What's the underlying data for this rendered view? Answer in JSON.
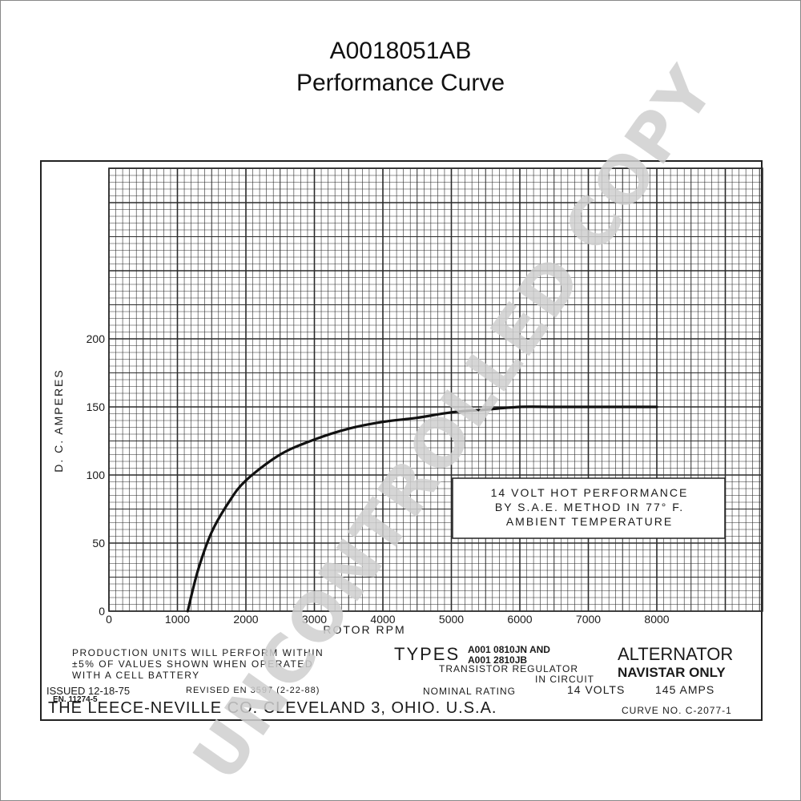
{
  "header": {
    "title": "A0018051AB",
    "subtitle": "Performance Curve"
  },
  "chart_data": {
    "type": "line",
    "xlabel": "ROTOR RPM",
    "ylabel": "D. C. AMPERES",
    "xlim": [
      0,
      8000
    ],
    "ylim": [
      0,
      200
    ],
    "x_ticks": [
      "0",
      "1000",
      "2000",
      "3000",
      "4000",
      "5000",
      "6000",
      "7000",
      "8000"
    ],
    "y_ticks": [
      "0",
      "50",
      "100",
      "150",
      "200"
    ],
    "grid": true,
    "series": [
      {
        "x": [
          1150,
          1300,
          1500,
          1750,
          2000,
          2500,
          3000,
          3500,
          4000,
          4500,
          5000,
          5500,
          6000,
          6500,
          7000,
          7500,
          8000
        ],
        "values": [
          0,
          30,
          58,
          80,
          96,
          115,
          126,
          134,
          139,
          142,
          146,
          148,
          150,
          150,
          150,
          150,
          150
        ]
      }
    ],
    "annotation": {
      "line1": "14 VOLT HOT PERFORMANCE",
      "line2": "BY S.A.E. METHOD IN 77° F.",
      "line3": "AMBIENT TEMPERATURE"
    }
  },
  "footer": {
    "production_line1": "PRODUCTION UNITS WILL PERFORM WITHIN",
    "production_line2": "±5% OF VALUES SHOWN WHEN OPERATED",
    "production_line3": "WITH A CELL BATTERY",
    "types_label": "TYPES",
    "type_1": "A001 0810JN AND",
    "type_2": "A001 2810JB",
    "regulator_line1": "TRANSISTOR REGULATOR",
    "regulator_line2": "IN CIRCUIT",
    "product_line1": "ALTERNATOR",
    "product_line2": "NAVISTAR ONLY",
    "issued": "ISSUED 12-18-75",
    "en_number": "EN. 11274-5",
    "revised": "REVISED EN 3597 (2-22-88)",
    "nominal_rating": "NOMINAL RATING",
    "volts": "14 VOLTS",
    "amps": "145 AMPS",
    "company": "THE LEECE-NEVILLE CO. CLEVELAND 3, OHIO. U.S.A.",
    "curve_no": "CURVE NO. C-2077-1"
  },
  "watermark": "UNCONTROLLED COPY",
  "colors": {
    "grid": "#2a2a2a",
    "curve": "#111111",
    "watermark": "#cfcfcf"
  }
}
